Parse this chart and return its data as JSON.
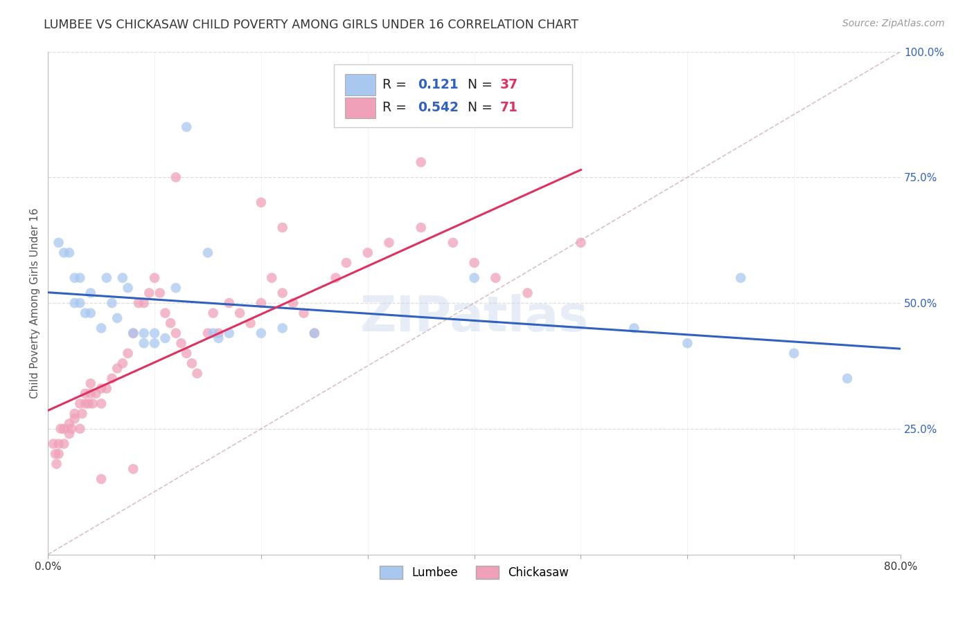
{
  "title": "LUMBEE VS CHICKASAW CHILD POVERTY AMONG GIRLS UNDER 16 CORRELATION CHART",
  "source": "Source: ZipAtlas.com",
  "ylabel": "Child Poverty Among Girls Under 16",
  "xlim": [
    0.0,
    0.8
  ],
  "ylim": [
    0.0,
    1.0
  ],
  "lumbee_R": 0.121,
  "lumbee_N": 37,
  "chickasaw_R": 0.542,
  "chickasaw_N": 71,
  "lumbee_color": "#A8C8F0",
  "chickasaw_color": "#F0A0B8",
  "lumbee_line_color": "#3060C0",
  "chickasaw_line_color": "#E03060",
  "diagonal_color": "#D0B0B8",
  "lumbee_scatter_x": [
    0.01,
    0.015,
    0.02,
    0.025,
    0.025,
    0.03,
    0.03,
    0.035,
    0.04,
    0.04,
    0.05,
    0.055,
    0.06,
    0.065,
    0.07,
    0.075,
    0.08,
    0.09,
    0.09,
    0.1,
    0.1,
    0.11,
    0.12,
    0.13,
    0.15,
    0.155,
    0.16,
    0.17,
    0.2,
    0.22,
    0.25,
    0.4,
    0.55,
    0.6,
    0.65,
    0.7,
    0.75
  ],
  "lumbee_scatter_y": [
    0.62,
    0.6,
    0.6,
    0.55,
    0.5,
    0.5,
    0.55,
    0.48,
    0.52,
    0.48,
    0.45,
    0.55,
    0.5,
    0.47,
    0.55,
    0.53,
    0.44,
    0.44,
    0.42,
    0.44,
    0.42,
    0.43,
    0.53,
    0.85,
    0.6,
    0.44,
    0.43,
    0.44,
    0.44,
    0.45,
    0.44,
    0.55,
    0.45,
    0.42,
    0.55,
    0.4,
    0.35
  ],
  "chickasaw_scatter_x": [
    0.005,
    0.007,
    0.008,
    0.01,
    0.01,
    0.012,
    0.015,
    0.015,
    0.02,
    0.02,
    0.022,
    0.025,
    0.025,
    0.03,
    0.03,
    0.032,
    0.035,
    0.035,
    0.038,
    0.04,
    0.04,
    0.042,
    0.045,
    0.05,
    0.05,
    0.055,
    0.06,
    0.065,
    0.07,
    0.075,
    0.08,
    0.085,
    0.09,
    0.095,
    0.1,
    0.105,
    0.11,
    0.115,
    0.12,
    0.125,
    0.13,
    0.135,
    0.14,
    0.15,
    0.155,
    0.16,
    0.17,
    0.18,
    0.19,
    0.2,
    0.21,
    0.22,
    0.23,
    0.24,
    0.25,
    0.27,
    0.28,
    0.3,
    0.32,
    0.35,
    0.38,
    0.4,
    0.42,
    0.45,
    0.5,
    0.35,
    0.2,
    0.22,
    0.12,
    0.05,
    0.08
  ],
  "chickasaw_scatter_y": [
    0.22,
    0.2,
    0.18,
    0.2,
    0.22,
    0.25,
    0.22,
    0.25,
    0.24,
    0.26,
    0.25,
    0.27,
    0.28,
    0.25,
    0.3,
    0.28,
    0.3,
    0.32,
    0.3,
    0.32,
    0.34,
    0.3,
    0.32,
    0.33,
    0.3,
    0.33,
    0.35,
    0.37,
    0.38,
    0.4,
    0.44,
    0.5,
    0.5,
    0.52,
    0.55,
    0.52,
    0.48,
    0.46,
    0.44,
    0.42,
    0.4,
    0.38,
    0.36,
    0.44,
    0.48,
    0.44,
    0.5,
    0.48,
    0.46,
    0.5,
    0.55,
    0.52,
    0.5,
    0.48,
    0.44,
    0.55,
    0.58,
    0.6,
    0.62,
    0.65,
    0.62,
    0.58,
    0.55,
    0.52,
    0.62,
    0.78,
    0.7,
    0.65,
    0.75,
    0.15,
    0.17
  ],
  "background_color": "#FFFFFF",
  "grid_color": "#DDDDDD"
}
